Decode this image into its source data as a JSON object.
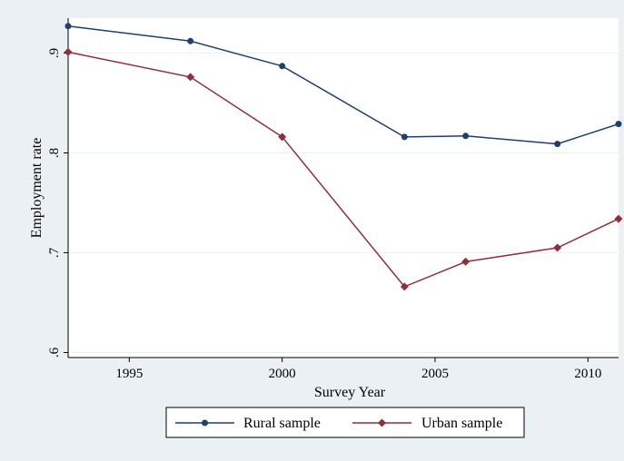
{
  "chart_data": {
    "type": "line",
    "xlabel": "Survey Year",
    "ylabel": "Employment rate",
    "xlim": [
      1993,
      2011
    ],
    "ylim": [
      0.595,
      0.935
    ],
    "x_ticks": [
      1995,
      2000,
      2005,
      2010
    ],
    "x_tick_labels": [
      "1995",
      "2000",
      "2005",
      "2010"
    ],
    "y_ticks": [
      0.6,
      0.7,
      0.8,
      0.9
    ],
    "y_tick_labels": [
      ".6",
      ".7",
      ".8",
      ".9"
    ],
    "grid": true,
    "legend_position": "bottom",
    "series": [
      {
        "name": "Rural sample",
        "marker": "circle",
        "color": "#1f3f6e",
        "x": [
          1993,
          1997,
          2000,
          2004,
          2006,
          2009,
          2011
        ],
        "values": [
          0.927,
          0.912,
          0.887,
          0.816,
          0.817,
          0.809,
          0.829
        ]
      },
      {
        "name": "Urban sample",
        "marker": "diamond",
        "color": "#8e2f3a",
        "x": [
          1993,
          1997,
          2000,
          2004,
          2006,
          2009,
          2011
        ],
        "values": [
          0.901,
          0.876,
          0.816,
          0.666,
          0.691,
          0.705,
          0.734
        ]
      }
    ]
  }
}
